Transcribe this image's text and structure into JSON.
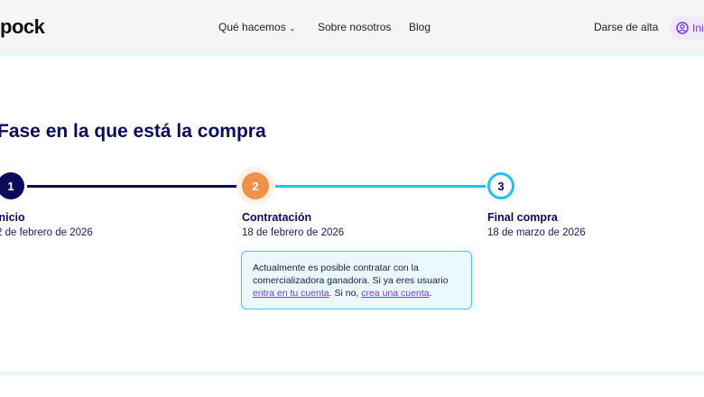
{
  "header": {
    "logo": "pock",
    "nav": [
      "Qué hacemos",
      "Sobre nosotros",
      "Blog"
    ],
    "signup": "Darse de alta",
    "login": "Ini"
  },
  "page_title": "Fase en la que está la compra",
  "steps": [
    {
      "number": "1",
      "label": "Inicio",
      "date": "2 de febrero de 2026",
      "status": "completed"
    },
    {
      "number": "2",
      "label": "Contratación",
      "date": "18 de febrero de 2026",
      "status": "current"
    },
    {
      "number": "3",
      "label": "Final compra",
      "date": "18 de marzo de 2026",
      "status": "pending"
    }
  ],
  "info": {
    "text1": "Actualmente es posible contratar con la comercializadora ganadora. Si ya eres usuario ",
    "link1": "entra en tu cuenta",
    "text2": ". Si no, ",
    "link2": "crea una cuenta",
    "text3": "."
  },
  "colors": {
    "navy": "#0b0b5c",
    "orange": "#f0914a",
    "cyan": "#1cc4f0",
    "purple": "#6d3be0"
  }
}
